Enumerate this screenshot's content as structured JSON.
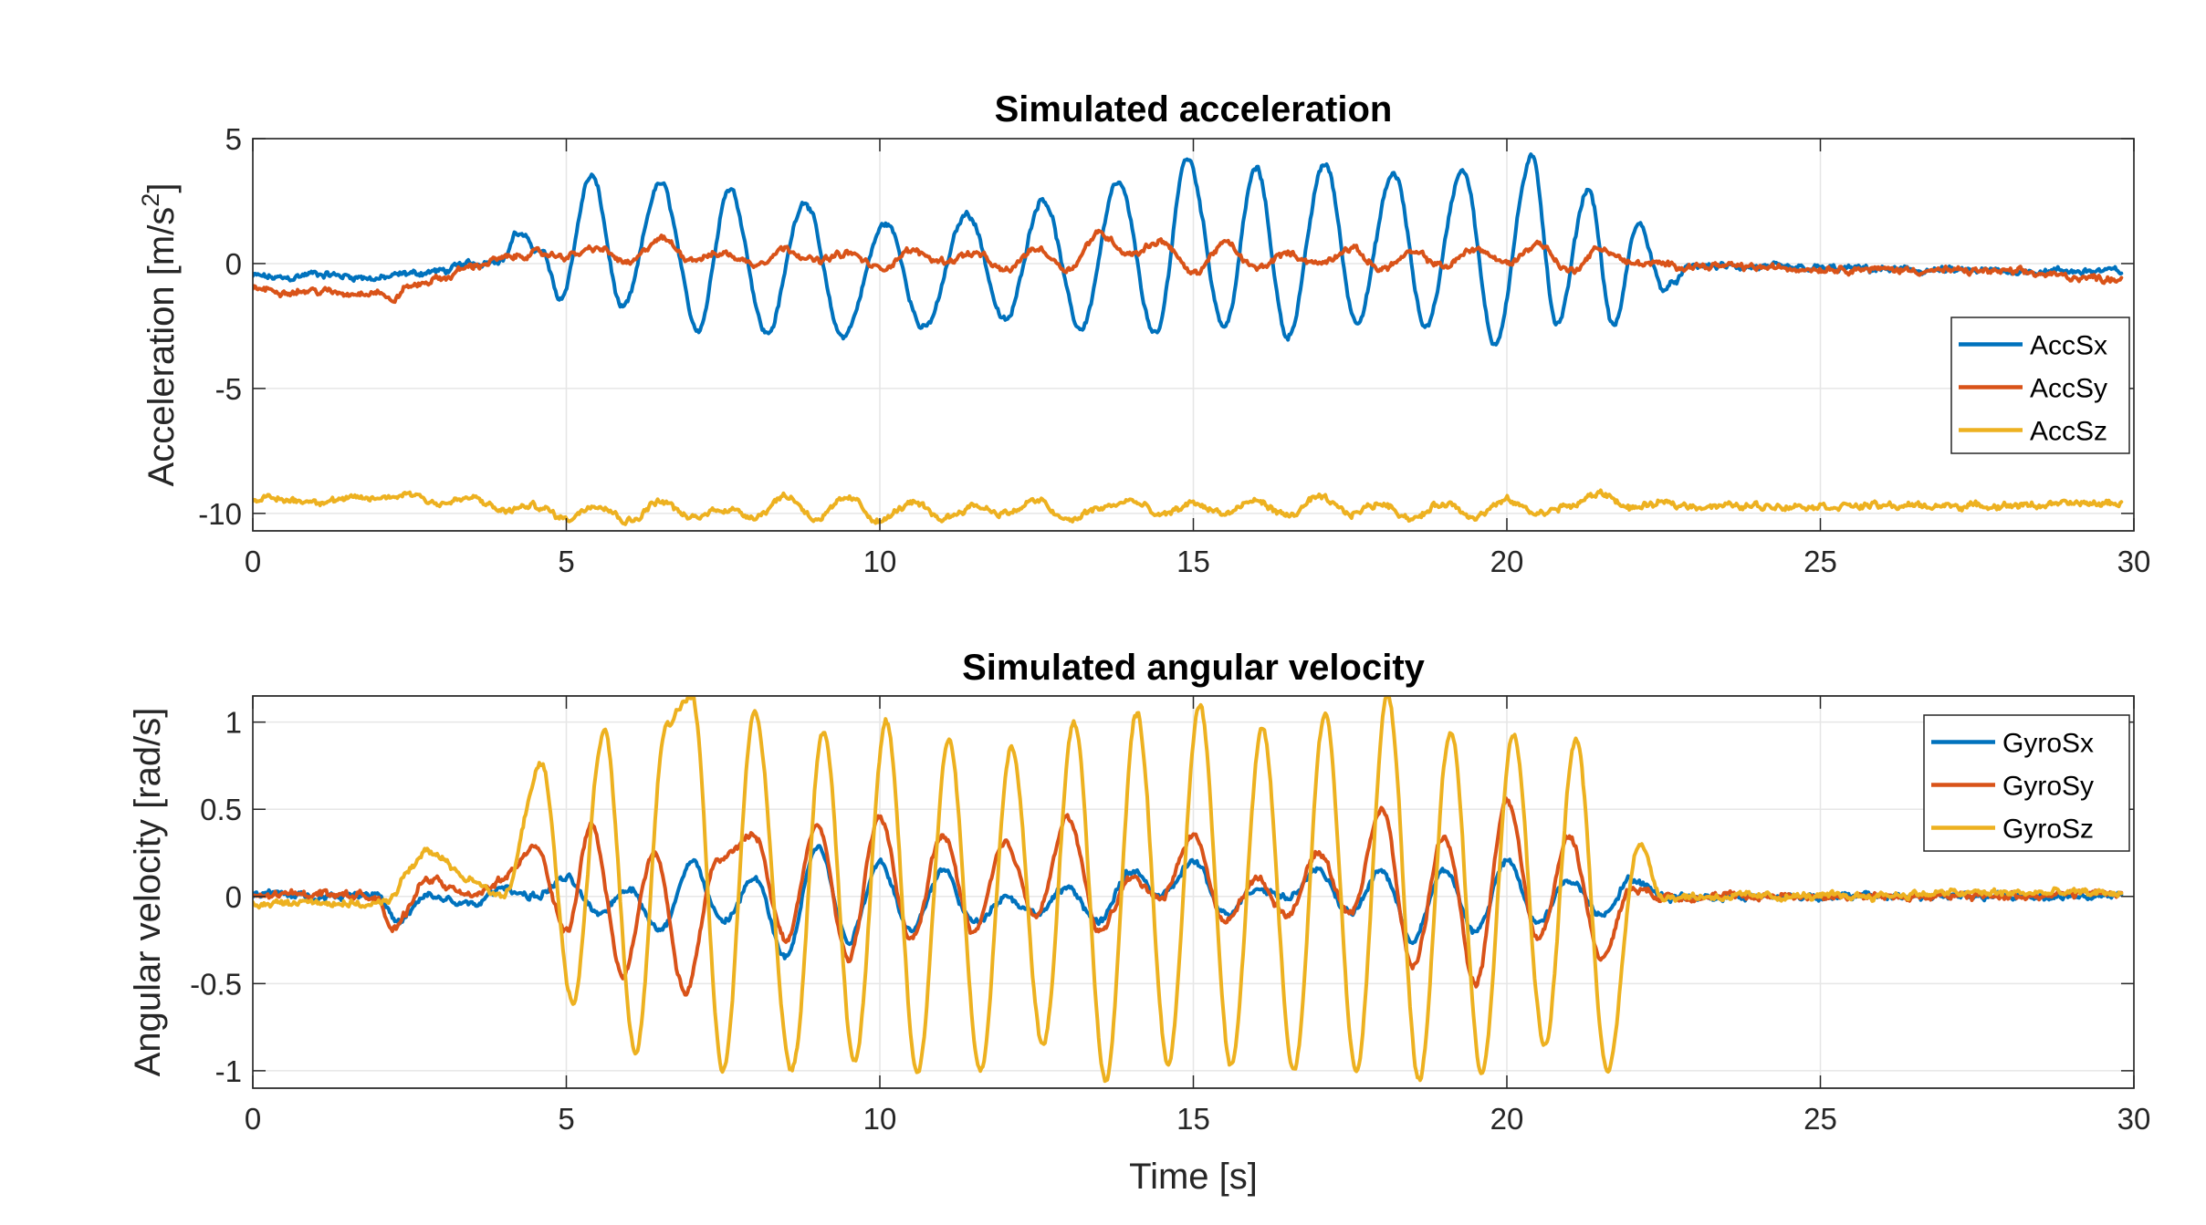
{
  "chart_data": [
    {
      "type": "line",
      "title": "Simulated acceleration",
      "xlabel": "",
      "ylabel": "Acceleration [m/s",
      "ylabel_sup": "2",
      "ylabel_end": "]",
      "xlim": [
        0,
        30
      ],
      "ylim": [
        -10.7,
        5
      ],
      "xticks": [
        0,
        5,
        10,
        15,
        20,
        25,
        30
      ],
      "yticks": [
        -10,
        -5,
        0,
        5
      ],
      "grid": true,
      "legend_position": "right-middle",
      "series": [
        {
          "name": "AccSx",
          "color": "#0072BD",
          "x": [
            0,
            0.5,
            1,
            1.5,
            2,
            2.5,
            3,
            3.5,
            4,
            4.2,
            4.6,
            4.9,
            5.4,
            5.9,
            6.5,
            7.1,
            7.6,
            8.2,
            8.8,
            9.4,
            10.1,
            10.7,
            11.4,
            12.0,
            12.6,
            13.2,
            13.8,
            14.4,
            14.9,
            15.5,
            16.0,
            16.5,
            17.1,
            17.6,
            18.2,
            18.7,
            19.3,
            19.8,
            20.4,
            20.8,
            21.3,
            21.7,
            22.1,
            22.5,
            23,
            25,
            27.5,
            29.8
          ],
          "values": [
            -0.5,
            -0.6,
            -0.4,
            -0.5,
            -0.6,
            -0.4,
            -0.3,
            0.0,
            0.2,
            1.2,
            0.5,
            -1.4,
            3.5,
            -1.8,
            3.2,
            -2.6,
            3.0,
            -2.8,
            2.5,
            -2.9,
            1.6,
            -2.6,
            2.0,
            -2.3,
            2.6,
            -2.6,
            3.2,
            -2.9,
            4.2,
            -2.5,
            3.8,
            -2.9,
            4.0,
            -2.3,
            3.6,
            -2.5,
            3.8,
            -3.2,
            4.2,
            -2.4,
            3.0,
            -2.5,
            1.6,
            -1.0,
            -0.1,
            -0.2,
            -0.3,
            -0.3
          ]
        },
        {
          "name": "AccSy",
          "color": "#D95319",
          "x": [
            0,
            0.5,
            1,
            1.5,
            2,
            2.2,
            2.5,
            3,
            3.5,
            4,
            4.5,
            5,
            5.5,
            6,
            6.5,
            7,
            7.5,
            8,
            8.5,
            9,
            9.5,
            10,
            10.5,
            11,
            11.5,
            12,
            12.5,
            13,
            13.5,
            14,
            14.5,
            15,
            15.5,
            16,
            16.5,
            17,
            17.5,
            18,
            18.5,
            19,
            19.5,
            20,
            20.5,
            21,
            21.5,
            22,
            23,
            25,
            27.5,
            29.8
          ],
          "values": [
            -1.0,
            -1.1,
            -1.1,
            -1.2,
            -1.1,
            -1.5,
            -0.9,
            -0.6,
            -0.1,
            0.2,
            0.4,
            0.3,
            0.6,
            0.0,
            1.0,
            0.2,
            0.4,
            0.0,
            0.6,
            0.1,
            0.4,
            -0.2,
            0.5,
            0.1,
            0.4,
            -0.3,
            0.6,
            -0.2,
            1.2,
            0.4,
            0.9,
            -0.4,
            0.8,
            -0.2,
            0.4,
            0.0,
            0.6,
            -0.2,
            0.4,
            -0.1,
            0.6,
            0.0,
            0.8,
            -0.3,
            0.6,
            0.0,
            -0.1,
            -0.2,
            -0.3,
            -0.6
          ]
        },
        {
          "name": "AccSz",
          "color": "#EDB120",
          "x": [
            0,
            1,
            2,
            2.5,
            3,
            3.5,
            4,
            4.5,
            5,
            5.5,
            6,
            6.5,
            7,
            7.5,
            8,
            8.5,
            9,
            9.5,
            10,
            10.5,
            11,
            11.5,
            12,
            12.5,
            13,
            13.5,
            14,
            14.5,
            15,
            15.5,
            16,
            16.5,
            17,
            17.5,
            18,
            18.5,
            19,
            19.5,
            20,
            20.5,
            21,
            21.5,
            22,
            22.5,
            23,
            25,
            27.5,
            29.8
          ],
          "values": [
            -9.4,
            -9.5,
            -9.4,
            -9.2,
            -9.6,
            -9.4,
            -9.9,
            -9.7,
            -10.2,
            -9.6,
            -10.3,
            -9.5,
            -10.2,
            -9.8,
            -10.1,
            -9.3,
            -10.2,
            -9.4,
            -10.3,
            -9.6,
            -10.2,
            -9.7,
            -10.0,
            -9.5,
            -10.3,
            -9.8,
            -9.5,
            -10.1,
            -9.6,
            -10.0,
            -9.5,
            -10.1,
            -9.4,
            -10.0,
            -9.6,
            -10.2,
            -9.6,
            -10.1,
            -9.5,
            -10.0,
            -9.7,
            -9.2,
            -9.8,
            -9.6,
            -9.7,
            -9.7,
            -9.7,
            -9.6
          ]
        }
      ]
    },
    {
      "type": "line",
      "title": "Simulated angular velocity",
      "xlabel": "Time [s]",
      "ylabel": "Angular velocity [rad/s]",
      "xlim": [
        0,
        30
      ],
      "ylim": [
        -1.1,
        1.15
      ],
      "xticks": [
        0,
        5,
        10,
        15,
        20,
        25,
        30
      ],
      "yticks": [
        -1,
        -0.5,
        0,
        0.5,
        1
      ],
      "grid": true,
      "legend_position": "top-right",
      "series": [
        {
          "name": "GyroSx",
          "color": "#0072BD",
          "x": [
            0,
            1,
            2,
            2.3,
            2.8,
            3.5,
            4,
            4.5,
            5,
            5.5,
            6,
            6.5,
            7,
            7.5,
            8,
            8.5,
            9,
            9.5,
            10,
            10.5,
            11,
            11.5,
            12,
            12.5,
            13,
            13.5,
            14,
            14.5,
            15,
            15.5,
            16,
            16.5,
            17,
            17.5,
            18,
            18.5,
            19,
            19.5,
            20,
            20.5,
            21,
            21.5,
            22,
            22.5,
            25,
            27.5,
            29.8
          ],
          "values": [
            0.02,
            0.0,
            0.02,
            -0.15,
            0.0,
            -0.05,
            0.05,
            0.0,
            0.1,
            -0.1,
            0.05,
            -0.2,
            0.2,
            -0.15,
            0.1,
            -0.35,
            0.3,
            -0.25,
            0.2,
            -0.2,
            0.15,
            -0.15,
            0.0,
            -0.1,
            0.05,
            -0.15,
            0.15,
            0.0,
            0.2,
            -0.1,
            0.05,
            0.0,
            0.15,
            -0.1,
            0.15,
            -0.25,
            0.15,
            -0.2,
            0.2,
            -0.15,
            0.1,
            -0.1,
            0.1,
            0.0,
            0.0,
            0.0,
            0.0
          ]
        },
        {
          "name": "GyroSy",
          "color": "#D95319",
          "x": [
            0,
            1,
            2,
            2.2,
            2.8,
            3.5,
            4,
            4.5,
            5,
            5.4,
            5.9,
            6.4,
            6.9,
            7.4,
            8.0,
            8.5,
            9.0,
            9.5,
            10.0,
            10.5,
            11.0,
            11.5,
            12.0,
            12.5,
            13.0,
            13.5,
            14.0,
            14.5,
            15.0,
            15.5,
            16.0,
            16.5,
            17.0,
            17.5,
            18.0,
            18.5,
            19.0,
            19.5,
            20.0,
            20.5,
            21.0,
            21.5,
            22.0,
            22.5,
            25,
            27.5,
            29.8
          ],
          "values": [
            0.0,
            0.02,
            0.0,
            -0.2,
            0.1,
            0.0,
            0.1,
            0.3,
            -0.2,
            0.4,
            -0.45,
            0.25,
            -0.55,
            0.2,
            0.35,
            -0.25,
            0.4,
            -0.35,
            0.45,
            -0.25,
            0.35,
            -0.2,
            0.3,
            -0.1,
            0.45,
            -0.2,
            0.1,
            0.0,
            0.35,
            -0.15,
            0.1,
            -0.1,
            0.25,
            -0.1,
            0.5,
            -0.4,
            0.35,
            -0.5,
            0.55,
            -0.25,
            0.35,
            -0.35,
            0.05,
            0.0,
            0.0,
            0.0,
            0.02
          ]
        },
        {
          "name": "GyroSz",
          "color": "#EDB120",
          "x": [
            0,
            1,
            2,
            2.8,
            3.5,
            4,
            4.6,
            5.1,
            5.6,
            6.1,
            6.6,
            7.0,
            7.5,
            8.0,
            8.6,
            9.1,
            9.6,
            10.1,
            10.6,
            11.1,
            11.6,
            12.1,
            12.6,
            13.1,
            13.6,
            14.1,
            14.6,
            15.1,
            15.6,
            16.1,
            16.6,
            17.1,
            17.6,
            18.1,
            18.6,
            19.1,
            19.6,
            20.1,
            20.6,
            21.1,
            21.6,
            22.1,
            22.5,
            25,
            27.5,
            29.8
          ],
          "values": [
            -0.05,
            -0.03,
            -0.05,
            0.25,
            0.1,
            0.0,
            0.75,
            -0.6,
            0.95,
            -0.9,
            1.0,
            1.15,
            -1.0,
            1.05,
            -1.0,
            0.95,
            -0.95,
            1.0,
            -1.0,
            0.9,
            -1.0,
            0.85,
            -0.85,
            1.0,
            -1.05,
            1.05,
            -0.95,
            1.1,
            -0.95,
            0.95,
            -1.0,
            1.05,
            -1.0,
            1.15,
            -1.05,
            0.95,
            -1.0,
            0.95,
            -0.85,
            0.9,
            -1.0,
            0.3,
            0.0,
            0.0,
            0.02,
            0.02
          ]
        }
      ]
    }
  ]
}
